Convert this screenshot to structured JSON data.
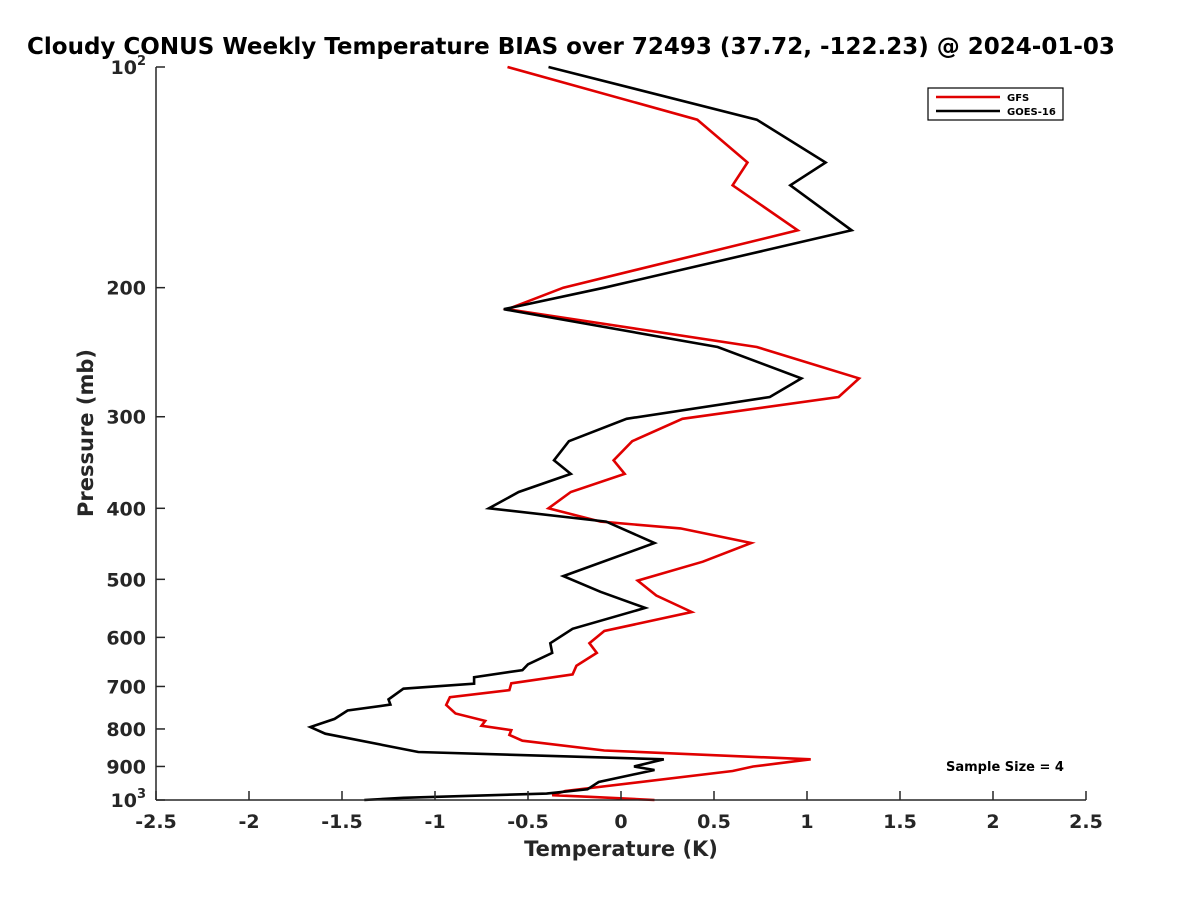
{
  "chart_data": {
    "type": "line",
    "title": "Cloudy CONUS Weekly Temperature BIAS over 72493 (37.72, -122.23) @ 2024-01-03",
    "xlabel": "Temperature (K)",
    "ylabel": "Pressure (mb)",
    "xlim": [
      -2.5,
      2.5
    ],
    "ylim": [
      100,
      1000
    ],
    "y_scale": "log",
    "y_reversed": true,
    "x_ticks": [
      "-2.5",
      "-2",
      "-1.5",
      "-1",
      "-0.5",
      "0",
      "0.5",
      "1",
      "1.5",
      "2",
      "2.5"
    ],
    "y_ticks": [
      {
        "value": 100,
        "label": "10",
        "sup": "2"
      },
      {
        "value": 200,
        "label": "200",
        "sup": ""
      },
      {
        "value": 300,
        "label": "300",
        "sup": ""
      },
      {
        "value": 400,
        "label": "400",
        "sup": ""
      },
      {
        "value": 500,
        "label": "500",
        "sup": ""
      },
      {
        "value": 600,
        "label": "600",
        "sup": ""
      },
      {
        "value": 700,
        "label": "700",
        "sup": ""
      },
      {
        "value": 800,
        "label": "800",
        "sup": ""
      },
      {
        "value": 900,
        "label": "900",
        "sup": ""
      },
      {
        "value": 1000,
        "label": "10",
        "sup": "3"
      }
    ],
    "grid": false,
    "legend_position": "top-right",
    "annotation": "Sample Size = 4",
    "series": [
      {
        "name": "GFS",
        "color": "#e00000",
        "points": [
          [
            -0.61,
            100
          ],
          [
            0.41,
            118
          ],
          [
            0.68,
            135
          ],
          [
            0.6,
            145
          ],
          [
            0.95,
            167
          ],
          [
            -0.31,
            200
          ],
          [
            -0.61,
            214
          ],
          [
            0.73,
            241
          ],
          [
            1.28,
            266
          ],
          [
            1.17,
            282
          ],
          [
            0.33,
            302
          ],
          [
            0.06,
            324
          ],
          [
            -0.04,
            344
          ],
          [
            0.02,
            359
          ],
          [
            -0.27,
            380
          ],
          [
            -0.39,
            400
          ],
          [
            -0.11,
            417
          ],
          [
            0.32,
            426
          ],
          [
            0.7,
            446
          ],
          [
            0.44,
            473
          ],
          [
            0.09,
            502
          ],
          [
            0.19,
            526
          ],
          [
            0.38,
            554
          ],
          [
            -0.09,
            588
          ],
          [
            -0.17,
            611
          ],
          [
            -0.13,
            630
          ],
          [
            -0.24,
            656
          ],
          [
            -0.26,
            674
          ],
          [
            -0.59,
            693
          ],
          [
            -0.6,
            708
          ],
          [
            -0.92,
            724
          ],
          [
            -0.94,
            742
          ],
          [
            -0.89,
            762
          ],
          [
            -0.73,
            780
          ],
          [
            -0.75,
            792
          ],
          [
            -0.59,
            803
          ],
          [
            -0.6,
            815
          ],
          [
            -0.53,
            830
          ],
          [
            -0.09,
            856
          ],
          [
            1.02,
            880
          ],
          [
            0.71,
            900
          ],
          [
            0.6,
            913
          ],
          [
            -0.3,
            972
          ],
          [
            -0.37,
            985
          ],
          [
            -0.17,
            990
          ],
          [
            0.18,
            1000
          ]
        ]
      },
      {
        "name": "GOES-16",
        "color": "#000000",
        "points": [
          [
            -0.39,
            100
          ],
          [
            0.73,
            118
          ],
          [
            1.1,
            135
          ],
          [
            0.91,
            145
          ],
          [
            1.24,
            167
          ],
          [
            -0.09,
            200
          ],
          [
            -0.63,
            214
          ],
          [
            0.52,
            241
          ],
          [
            0.97,
            266
          ],
          [
            0.8,
            282
          ],
          [
            0.03,
            302
          ],
          [
            -0.28,
            324
          ],
          [
            -0.36,
            344
          ],
          [
            -0.27,
            359
          ],
          [
            -0.55,
            380
          ],
          [
            -0.71,
            400
          ],
          [
            -0.08,
            417
          ],
          [
            0.18,
            446
          ],
          [
            -0.31,
            495
          ],
          [
            -0.11,
            520
          ],
          [
            0.13,
            547
          ],
          [
            -0.26,
            584
          ],
          [
            -0.38,
            611
          ],
          [
            -0.37,
            630
          ],
          [
            -0.5,
            653
          ],
          [
            -0.53,
            665
          ],
          [
            -0.79,
            680
          ],
          [
            -0.79,
            694
          ],
          [
            -1.17,
            705
          ],
          [
            -1.25,
            729
          ],
          [
            -1.24,
            741
          ],
          [
            -1.47,
            755
          ],
          [
            -1.54,
            775
          ],
          [
            -1.67,
            795
          ],
          [
            -1.59,
            812
          ],
          [
            -1.09,
            860
          ],
          [
            0.23,
            880
          ],
          [
            0.07,
            900
          ],
          [
            0.18,
            910
          ],
          [
            -0.12,
            945
          ],
          [
            -0.18,
            967
          ],
          [
            -0.4,
            980
          ],
          [
            -1.17,
            993
          ],
          [
            -1.38,
            1000
          ]
        ]
      }
    ]
  }
}
